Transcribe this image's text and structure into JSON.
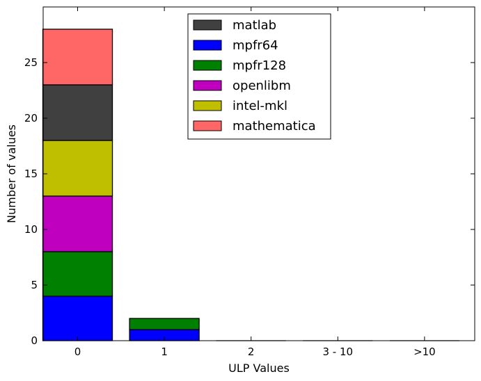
{
  "chart_data": {
    "type": "bar",
    "stacked": true,
    "categories": [
      "0",
      "1",
      "2",
      "3 - 10",
      ">10"
    ],
    "series": [
      {
        "name": "mpfr64",
        "color": "#0000ff",
        "values": [
          4,
          1,
          0,
          0,
          0
        ]
      },
      {
        "name": "mpfr128",
        "color": "#008000",
        "values": [
          4,
          1,
          0,
          0,
          0
        ]
      },
      {
        "name": "openlibm",
        "color": "#bf00bf",
        "values": [
          5,
          0,
          0,
          0,
          0
        ]
      },
      {
        "name": "intel-mkl",
        "color": "#bfbf00",
        "values": [
          5,
          0,
          0,
          0,
          0
        ]
      },
      {
        "name": "matlab",
        "color": "#404040",
        "values": [
          5,
          0,
          0,
          0,
          0
        ]
      },
      {
        "name": "mathematica",
        "color": "#ff6666",
        "values": [
          5,
          0,
          0,
          0,
          0
        ]
      }
    ],
    "legend_order": [
      "matlab",
      "mpfr64",
      "mpfr128",
      "openlibm",
      "intel-mkl",
      "mathematica"
    ],
    "legend_position": "top-center",
    "xlabel": "ULP Values",
    "ylabel": "Number of values",
    "ylim": [
      0,
      30
    ],
    "yticks": [
      "0",
      "5",
      "10",
      "15",
      "20",
      "25"
    ],
    "grid": false
  }
}
